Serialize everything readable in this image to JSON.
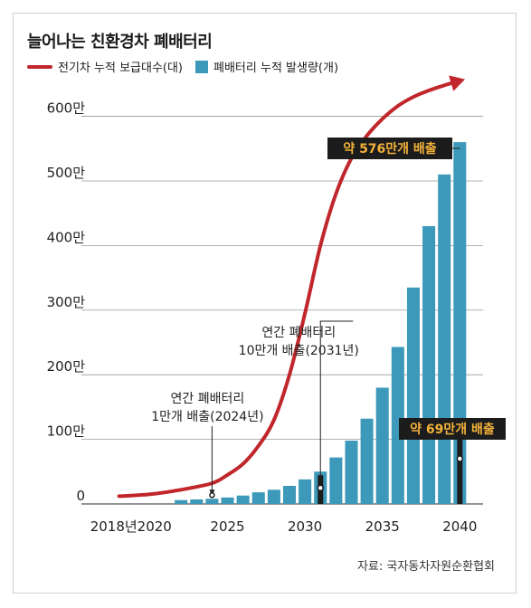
{
  "chart_data": {
    "type": "bar",
    "title": "늘어나는 친환경차 폐배터리",
    "legend": [
      {
        "name": "전기차 누적 보급대수(대)",
        "kind": "line",
        "color": "#c0262b"
      },
      {
        "name": "폐배터리 누적 발생량(개)",
        "kind": "bar",
        "color": "#3d99b9"
      }
    ],
    "y_ticks": [
      {
        "value": 0,
        "label": "0"
      },
      {
        "value": 100,
        "label": "100만"
      },
      {
        "value": 200,
        "label": "200만"
      },
      {
        "value": 300,
        "label": "300만"
      },
      {
        "value": 400,
        "label": "400만"
      },
      {
        "value": 500,
        "label": "500만"
      },
      {
        "value": 600,
        "label": "600만"
      }
    ],
    "ylim": [
      0,
      640
    ],
    "x_ticks": [
      {
        "value": 2018,
        "label": "2018년"
      },
      {
        "value": 2020,
        "label": "2020"
      },
      {
        "value": 2025,
        "label": "2025"
      },
      {
        "value": 2030,
        "label": "2030"
      },
      {
        "value": 2035,
        "label": "2035"
      },
      {
        "value": 2040,
        "label": "2040"
      }
    ],
    "xlim": [
      2016.5,
      2041.5
    ],
    "bars": {
      "name": "폐배터리 누적 발생량(개)",
      "x": [
        2022,
        2023,
        2024,
        2025,
        2026,
        2027,
        2028,
        2029,
        2030,
        2031,
        2032,
        2033,
        2034,
        2035,
        2036,
        2037,
        2038,
        2039,
        2040
      ],
      "values": [
        6,
        7,
        8,
        10,
        13,
        18,
        22,
        28,
        38,
        50,
        72,
        98,
        132,
        180,
        243,
        335,
        430,
        510,
        560
      ]
    },
    "curve": {
      "name": "전기차 누적 보급대수(대)",
      "x": [
        2018,
        2020,
        2022,
        2024,
        2025,
        2026,
        2027,
        2028,
        2029,
        2030,
        2031,
        2032,
        2033,
        2034,
        2035,
        2036,
        2037,
        2038,
        2039,
        2040
      ],
      "values": [
        12,
        15,
        22,
        32,
        45,
        62,
        90,
        130,
        200,
        295,
        400,
        480,
        535,
        570,
        596,
        616,
        630,
        640,
        648,
        655
      ]
    },
    "annotations": [
      {
        "text": [
          "연간 폐배터리",
          "1만개 배출(2024년)"
        ],
        "x": 2024,
        "value": 8,
        "style": "plain"
      },
      {
        "text": [
          "연간 폐배터리",
          "10만개 배출(2031년)"
        ],
        "x": 2031,
        "value": 50,
        "style": "plain"
      },
      {
        "text": [
          "약 69만개 배출"
        ],
        "x": 2040,
        "value": 69,
        "style": "dark"
      },
      {
        "text": [
          "약 576만개 배출"
        ],
        "x": 2040,
        "value": 560,
        "style": "dark"
      }
    ],
    "colors": {
      "bar": "#3d99b9",
      "curve": "#c0262b",
      "label_bg": "#1c1c1c",
      "label_text": "#f3b23a"
    }
  },
  "source": "자료: 국자동차자원순환협회"
}
